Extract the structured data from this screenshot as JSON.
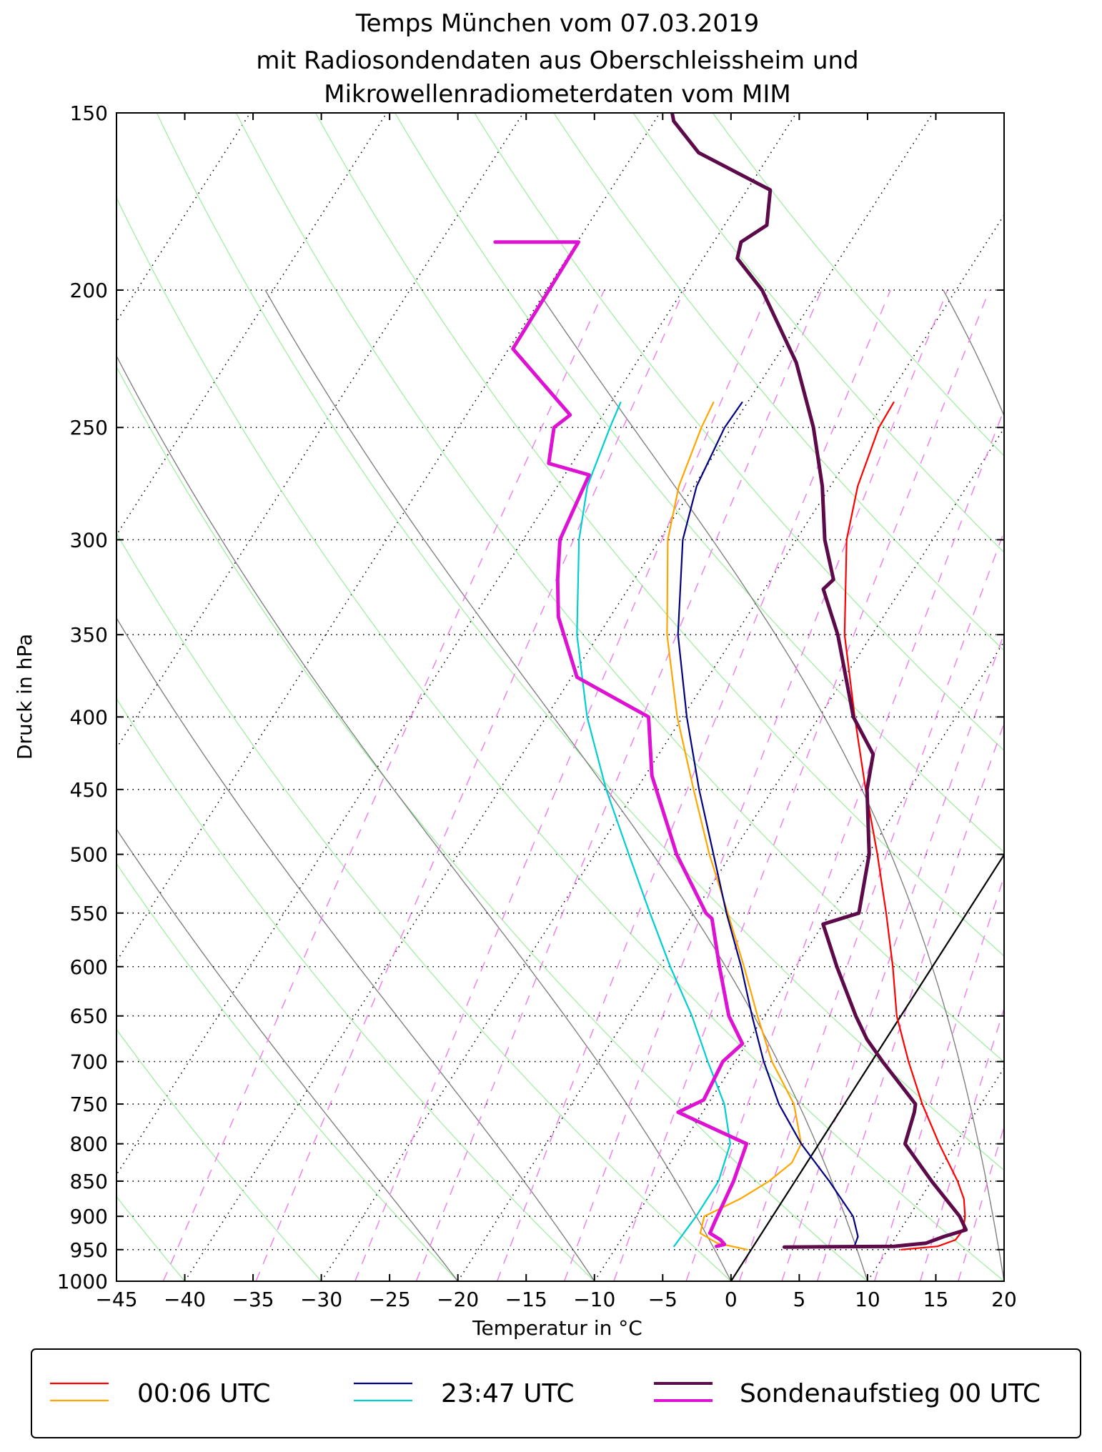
{
  "chart_data": {
    "type": "line",
    "chart_kind": "Skew-T log-p diagram (Temp)",
    "title": [
      "Temps München vom 07.03.2019",
      "mit Radiosondendaten aus Oberschleissheim und",
      "Mikrowellenradiometerdaten vom MIM"
    ],
    "xlabel": "Temperatur in °C",
    "ylabel": "Druck in hPa",
    "xlim": [
      -45,
      20
    ],
    "ylim": [
      1000,
      150
    ],
    "y_scale": "log",
    "skew_deg_per_decade": 66.5,
    "xticks": [
      -45,
      -40,
      -35,
      -30,
      -25,
      -20,
      -15,
      -10,
      -5,
      0,
      5,
      10,
      15,
      20
    ],
    "xtick_labels": [
      "−45",
      "−40",
      "−35",
      "−30",
      "−25",
      "−20",
      "−15",
      "−10",
      "−5",
      "0",
      "5",
      "10",
      "15",
      "20"
    ],
    "yticks": [
      1000,
      950,
      900,
      850,
      800,
      750,
      700,
      650,
      600,
      550,
      500,
      450,
      400,
      350,
      300,
      250,
      200,
      150
    ],
    "isobar_grid": true,
    "reference_line": {
      "name": "0 °C isotherm",
      "color": "#000000",
      "temp": 0
    },
    "background_lines": {
      "isotherms": {
        "color": "#000000",
        "style": "dotted",
        "values": [
          -130,
          -120,
          -110,
          -100,
          -90,
          -80,
          -70,
          -60,
          -50,
          -40,
          -30,
          -20,
          -10,
          10,
          20
        ]
      },
      "dry_adiabats": {
        "color": "#9aee9a",
        "style": "solid",
        "theta_C": [
          -40,
          -30,
          -20,
          -10,
          0,
          10,
          20,
          30,
          40,
          50,
          60,
          70,
          80,
          90,
          100
        ]
      },
      "moist_adiabats": {
        "color": "#808080",
        "style": "solid",
        "start_T_C_at_1000": [
          -20,
          -10,
          0,
          10,
          20,
          30
        ]
      },
      "mixing_ratio_lines": {
        "color": "#ee82ee",
        "style": "dashed",
        "w_gkg": [
          0.1,
          0.2,
          0.4,
          0.6,
          1,
          1.5,
          2,
          3,
          4,
          5,
          6,
          8,
          10,
          12,
          16,
          20,
          24
        ]
      }
    },
    "series": [
      {
        "name": "00:06 UTC Temperatur",
        "legend_label": "00:06 UTC",
        "color": "#ff0000",
        "width": "thin",
        "points": [
          [
            950,
            11
          ],
          [
            945,
            13.5
          ],
          [
            935,
            14.5
          ],
          [
            920,
            14.6
          ],
          [
            900,
            14.1
          ],
          [
            875,
            13.2
          ],
          [
            850,
            11.9
          ],
          [
            800,
            8.8
          ],
          [
            750,
            5.7
          ],
          [
            700,
            2.7
          ],
          [
            650,
            -0.3
          ],
          [
            600,
            -2.9
          ],
          [
            550,
            -5.9
          ],
          [
            500,
            -9.3
          ],
          [
            450,
            -13.2
          ],
          [
            400,
            -17.4
          ],
          [
            350,
            -22.0
          ],
          [
            300,
            -26.3
          ],
          [
            275,
            -28.0
          ],
          [
            250,
            -29.2
          ],
          [
            240,
            -29.3
          ]
        ]
      },
      {
        "name": "00:06 UTC Taupunkt",
        "legend_label": "00:06 UTC",
        "color": "#ffa500",
        "width": "thin",
        "points": [
          [
            950,
            -0.3
          ],
          [
            940,
            -2.8
          ],
          [
            925,
            -4.5
          ],
          [
            900,
            -5.0
          ],
          [
            875,
            -3.2
          ],
          [
            850,
            -1.9
          ],
          [
            825,
            -1.1
          ],
          [
            800,
            -1.3
          ],
          [
            750,
            -3.7
          ],
          [
            700,
            -7.3
          ],
          [
            650,
            -10.5
          ],
          [
            600,
            -13.8
          ],
          [
            550,
            -17.5
          ],
          [
            500,
            -21.6
          ],
          [
            450,
            -25.8
          ],
          [
            400,
            -30.4
          ],
          [
            350,
            -35.0
          ],
          [
            300,
            -39.4
          ],
          [
            275,
            -41.1
          ],
          [
            250,
            -42.2
          ],
          [
            240,
            -42.5
          ]
        ]
      },
      {
        "name": "23:47 UTC Temperatur",
        "legend_label": "23:47 UTC",
        "color": "#000080",
        "width": "thin",
        "points": [
          [
            945,
            7.4
          ],
          [
            930,
            7.2
          ],
          [
            900,
            5.9
          ],
          [
            850,
            2.5
          ],
          [
            800,
            -1.3
          ],
          [
            750,
            -4.8
          ],
          [
            700,
            -7.9
          ],
          [
            650,
            -10.9
          ],
          [
            600,
            -14.0
          ],
          [
            550,
            -17.6
          ],
          [
            500,
            -21.3
          ],
          [
            450,
            -25.4
          ],
          [
            400,
            -29.7
          ],
          [
            350,
            -34.2
          ],
          [
            300,
            -38.3
          ],
          [
            275,
            -39.8
          ],
          [
            250,
            -40.5
          ],
          [
            240,
            -40.4
          ]
        ]
      },
      {
        "name": "23:47 UTC Taupunkt",
        "legend_label": "23:47 UTC",
        "color": "#00ced1",
        "width": "thin",
        "points": [
          [
            945,
            -5.8
          ],
          [
            900,
            -5.6
          ],
          [
            850,
            -5.6
          ],
          [
            800,
            -6.5
          ],
          [
            750,
            -8.8
          ],
          [
            700,
            -12.0
          ],
          [
            650,
            -15.3
          ],
          [
            600,
            -19.2
          ],
          [
            550,
            -23.2
          ],
          [
            500,
            -27.5
          ],
          [
            450,
            -32.2
          ],
          [
            400,
            -37.0
          ],
          [
            350,
            -41.6
          ],
          [
            300,
            -45.9
          ],
          [
            275,
            -47.8
          ],
          [
            250,
            -48.9
          ],
          [
            240,
            -49.3
          ]
        ]
      },
      {
        "name": "Sondenaufstieg 00 UTC Temperatur",
        "legend_label": "Sondenaufstieg 00 UTC",
        "color": "#5c0a4a",
        "width": "thick",
        "points": [
          [
            946,
            2.3
          ],
          [
            945,
            10.3
          ],
          [
            940,
            12.5
          ],
          [
            930,
            13.5
          ],
          [
            920,
            14.8
          ],
          [
            900,
            13.7
          ],
          [
            850,
            10.0
          ],
          [
            800,
            6.3
          ],
          [
            760,
            5.5
          ],
          [
            750,
            5.2
          ],
          [
            700,
            0.8
          ],
          [
            675,
            -1.4
          ],
          [
            650,
            -3.3
          ],
          [
            600,
            -7.0
          ],
          [
            560,
            -10.0
          ],
          [
            550,
            -7.9
          ],
          [
            500,
            -9.9
          ],
          [
            450,
            -13.1
          ],
          [
            425,
            -14.3
          ],
          [
            400,
            -17.5
          ],
          [
            350,
            -22.5
          ],
          [
            325,
            -25.7
          ],
          [
            320,
            -25.4
          ],
          [
            300,
            -27.9
          ],
          [
            275,
            -30.6
          ],
          [
            250,
            -34.0
          ],
          [
            225,
            -38.3
          ],
          [
            200,
            -44.2
          ],
          [
            190,
            -47.5
          ],
          [
            185,
            -48.0
          ],
          [
            180,
            -46.9
          ],
          [
            170,
            -48.3
          ],
          [
            160,
            -55.3
          ],
          [
            152,
            -58.6
          ],
          [
            150,
            -59.1
          ]
        ]
      },
      {
        "name": "Sondenaufstieg 00 UTC Taupunkt",
        "legend_label": "Sondenaufstieg 00 UTC",
        "color": "#dd12d2",
        "width": "thick",
        "points": [
          [
            945,
            -2.7
          ],
          [
            942,
            -2.2
          ],
          [
            935,
            -2.7
          ],
          [
            925,
            -3.8
          ],
          [
            905,
            -4.0
          ],
          [
            850,
            -4.5
          ],
          [
            800,
            -5.3
          ],
          [
            795,
            -6.1
          ],
          [
            760,
            -11.8
          ],
          [
            745,
            -10.5
          ],
          [
            700,
            -10.9
          ],
          [
            680,
            -10.3
          ],
          [
            650,
            -12.6
          ],
          [
            600,
            -15.6
          ],
          [
            555,
            -18.4
          ],
          [
            550,
            -19.1
          ],
          [
            500,
            -24.0
          ],
          [
            440,
            -29.5
          ],
          [
            400,
            -32.5
          ],
          [
            375,
            -39.6
          ],
          [
            340,
            -43.8
          ],
          [
            320,
            -45.6
          ],
          [
            300,
            -47.3
          ],
          [
            270,
            -48.2
          ],
          [
            265,
            -51.7
          ],
          [
            250,
            -53.0
          ],
          [
            245,
            -52.4
          ],
          [
            220,
            -59.7
          ],
          [
            185,
            -59.9
          ],
          [
            185,
            -66.0
          ]
        ]
      }
    ],
    "legend": {
      "placement": "bottom-center",
      "entries": [
        "00:06 UTC",
        "23:47 UTC",
        "Sondenaufstieg 00 UTC"
      ]
    }
  }
}
